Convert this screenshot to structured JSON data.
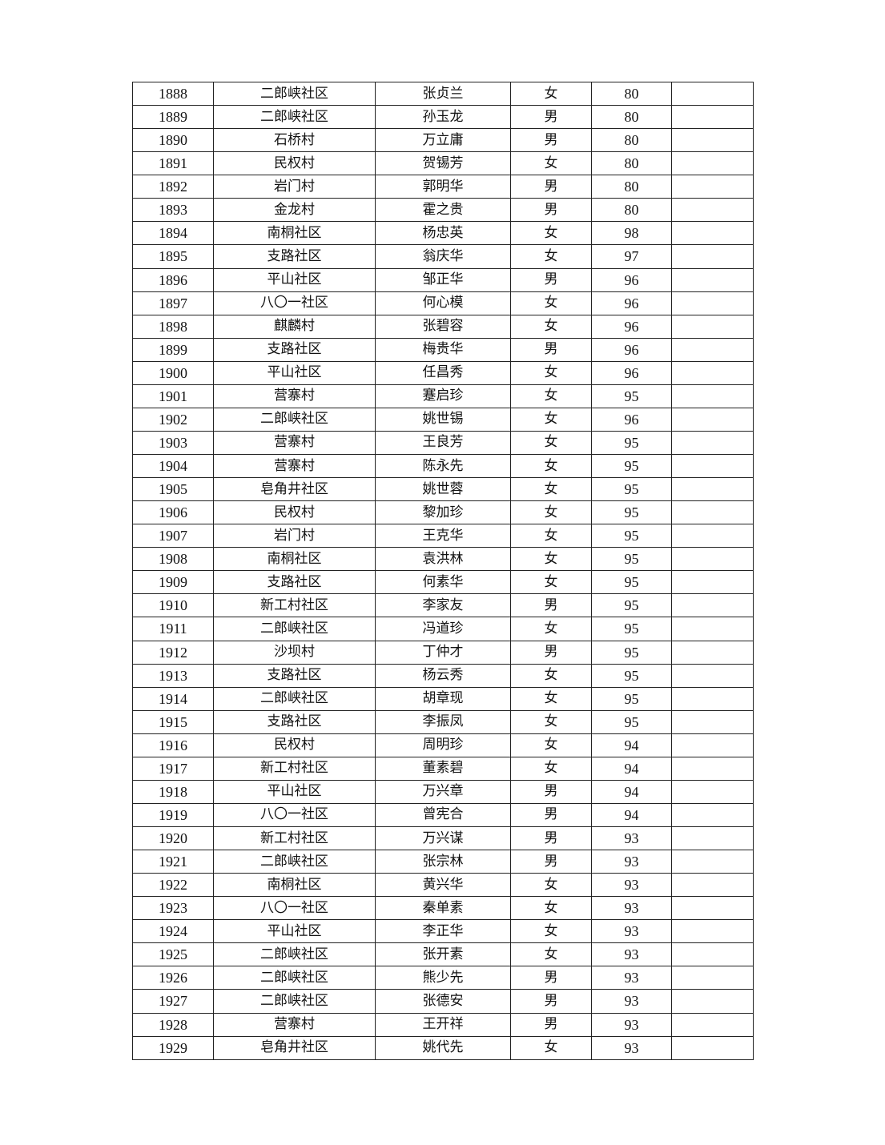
{
  "rows": [
    [
      "1888",
      "二郎峡社区",
      "张贞兰",
      "女",
      "80",
      ""
    ],
    [
      "1889",
      "二郎峡社区",
      "孙玉龙",
      "男",
      "80",
      ""
    ],
    [
      "1890",
      "石桥村",
      "万立庸",
      "男",
      "80",
      ""
    ],
    [
      "1891",
      "民权村",
      "贺锡芳",
      "女",
      "80",
      ""
    ],
    [
      "1892",
      "岩门村",
      "郭明华",
      "男",
      "80",
      ""
    ],
    [
      "1893",
      "金龙村",
      "霍之贵",
      "男",
      "80",
      ""
    ],
    [
      "1894",
      "南桐社区",
      "杨忠英",
      "女",
      "98",
      ""
    ],
    [
      "1895",
      "支路社区",
      "翁庆华",
      "女",
      "97",
      ""
    ],
    [
      "1896",
      "平山社区",
      "邹正华",
      "男",
      "96",
      ""
    ],
    [
      "1897",
      "八〇一社区",
      "何心模",
      "女",
      "96",
      ""
    ],
    [
      "1898",
      "麒麟村",
      "张碧容",
      "女",
      "96",
      ""
    ],
    [
      "1899",
      "支路社区",
      "梅贵华",
      "男",
      "96",
      ""
    ],
    [
      "1900",
      "平山社区",
      "任昌秀",
      "女",
      "96",
      ""
    ],
    [
      "1901",
      "营寨村",
      "蹇启珍",
      "女",
      "95",
      ""
    ],
    [
      "1902",
      "二郎峡社区",
      "姚世锡",
      "女",
      "96",
      ""
    ],
    [
      "1903",
      "营寨村",
      "王良芳",
      "女",
      "95",
      ""
    ],
    [
      "1904",
      "营寨村",
      "陈永先",
      "女",
      "95",
      ""
    ],
    [
      "1905",
      "皂角井社区",
      "姚世蓉",
      "女",
      "95",
      ""
    ],
    [
      "1906",
      "民权村",
      "黎加珍",
      "女",
      "95",
      ""
    ],
    [
      "1907",
      "岩门村",
      "王克华",
      "女",
      "95",
      ""
    ],
    [
      "1908",
      "南桐社区",
      "袁洪林",
      "女",
      "95",
      ""
    ],
    [
      "1909",
      "支路社区",
      "何素华",
      "女",
      "95",
      ""
    ],
    [
      "1910",
      "新工村社区",
      "李家友",
      "男",
      "95",
      ""
    ],
    [
      "1911",
      "二郎峡社区",
      "冯道珍",
      "女",
      "95",
      ""
    ],
    [
      "1912",
      "沙坝村",
      "丁仲才",
      "男",
      "95",
      ""
    ],
    [
      "1913",
      "支路社区",
      "杨云秀",
      "女",
      "95",
      ""
    ],
    [
      "1914",
      "二郎峡社区",
      "胡章现",
      "女",
      "95",
      ""
    ],
    [
      "1915",
      "支路社区",
      "李振凤",
      "女",
      "95",
      ""
    ],
    [
      "1916",
      "民权村",
      "周明珍",
      "女",
      "94",
      ""
    ],
    [
      "1917",
      "新工村社区",
      "董素碧",
      "女",
      "94",
      ""
    ],
    [
      "1918",
      "平山社区",
      "万兴章",
      "男",
      "94",
      ""
    ],
    [
      "1919",
      "八〇一社区",
      "曾宪合",
      "男",
      "94",
      ""
    ],
    [
      "1920",
      "新工村社区",
      "万兴谋",
      "男",
      "93",
      ""
    ],
    [
      "1921",
      "二郎峡社区",
      "张宗林",
      "男",
      "93",
      ""
    ],
    [
      "1922",
      "南桐社区",
      "黄兴华",
      "女",
      "93",
      ""
    ],
    [
      "1923",
      "八〇一社区",
      "秦单素",
      "女",
      "93",
      ""
    ],
    [
      "1924",
      "平山社区",
      "李正华",
      "女",
      "93",
      ""
    ],
    [
      "1925",
      "二郎峡社区",
      "张开素",
      "女",
      "93",
      ""
    ],
    [
      "1926",
      "二郎峡社区",
      "熊少先",
      "男",
      "93",
      ""
    ],
    [
      "1927",
      "二郎峡社区",
      "张德安",
      "男",
      "93",
      ""
    ],
    [
      "1928",
      "营寨村",
      "王开祥",
      "男",
      "93",
      ""
    ],
    [
      "1929",
      "皂角井社区",
      "姚代先",
      "女",
      "93",
      ""
    ]
  ]
}
